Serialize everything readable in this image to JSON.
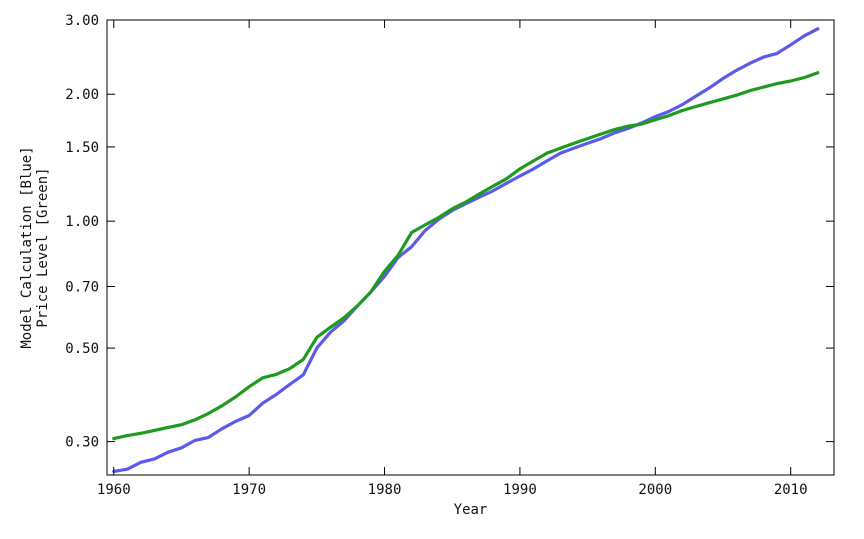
{
  "chart_data": {
    "type": "line",
    "title": "",
    "xlabel": "Year",
    "ylabel_lines": [
      "Model Calculation [Blue]",
      "Price Level [Green]"
    ],
    "y_scale": "log",
    "xlim": [
      1959.5,
      2013.2
    ],
    "ylim": [
      0.25,
      3.0
    ],
    "x_ticks": [
      1960,
      1970,
      1980,
      1990,
      2000,
      2010
    ],
    "x_tick_labels": [
      "1960",
      "1970",
      "1980",
      "1990",
      "2000",
      "2010"
    ],
    "y_ticks": [
      0.3,
      0.5,
      0.7,
      1.0,
      1.5,
      2.0,
      3.0
    ],
    "y_tick_labels": [
      "0.30",
      "0.50",
      "0.70",
      "1.00",
      "1.50",
      "2.00",
      "3.00"
    ],
    "grid": false,
    "series": [
      {
        "color": "#5b5bea",
        "x": [
          1960,
          1961,
          1962,
          1963,
          1964,
          1965,
          1966,
          1967,
          1968,
          1969,
          1970,
          1971,
          1972,
          1973,
          1974,
          1975,
          1976,
          1977,
          1978,
          1979,
          1980,
          1981,
          1982,
          1983,
          1984,
          1985,
          1986,
          1987,
          1988,
          1989,
          1990,
          1991,
          1992,
          1993,
          1994,
          1995,
          1996,
          1997,
          1998,
          1999,
          2000,
          2001,
          2002,
          2003,
          2004,
          2005,
          2006,
          2007,
          2008,
          2009,
          2010,
          2011,
          2012
        ],
        "values": [
          0.255,
          0.258,
          0.268,
          0.273,
          0.283,
          0.29,
          0.302,
          0.307,
          0.322,
          0.335,
          0.346,
          0.37,
          0.388,
          0.41,
          0.432,
          0.5,
          0.545,
          0.58,
          0.63,
          0.68,
          0.74,
          0.82,
          0.87,
          0.95,
          1.01,
          1.06,
          1.1,
          1.14,
          1.18,
          1.23,
          1.28,
          1.33,
          1.39,
          1.45,
          1.49,
          1.53,
          1.57,
          1.62,
          1.66,
          1.71,
          1.77,
          1.82,
          1.89,
          1.98,
          2.07,
          2.18,
          2.28,
          2.37,
          2.45,
          2.5,
          2.62,
          2.75,
          2.86
        ]
      },
      {
        "color": "#1e9a1e",
        "x": [
          1960,
          1961,
          1962,
          1963,
          1964,
          1965,
          1966,
          1967,
          1968,
          1969,
          1970,
          1971,
          1972,
          1973,
          1974,
          1975,
          1976,
          1977,
          1978,
          1979,
          1980,
          1981,
          1982,
          1983,
          1984,
          1985,
          1986,
          1987,
          1988,
          1989,
          1990,
          1991,
          1992,
          1993,
          1994,
          1995,
          1996,
          1997,
          1998,
          1999,
          2000,
          2001,
          2002,
          2003,
          2004,
          2005,
          2006,
          2007,
          2008,
          2009,
          2010,
          2011,
          2012
        ],
        "values": [
          0.305,
          0.31,
          0.314,
          0.319,
          0.324,
          0.329,
          0.338,
          0.35,
          0.365,
          0.383,
          0.405,
          0.425,
          0.433,
          0.447,
          0.47,
          0.53,
          0.56,
          0.59,
          0.63,
          0.68,
          0.76,
          0.83,
          0.94,
          0.98,
          1.02,
          1.07,
          1.11,
          1.16,
          1.21,
          1.26,
          1.33,
          1.39,
          1.45,
          1.49,
          1.53,
          1.57,
          1.61,
          1.65,
          1.68,
          1.7,
          1.74,
          1.78,
          1.83,
          1.87,
          1.91,
          1.95,
          1.99,
          2.04,
          2.08,
          2.12,
          2.15,
          2.19,
          2.25
        ]
      }
    ]
  }
}
